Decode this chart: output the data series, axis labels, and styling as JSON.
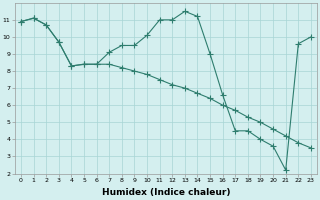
{
  "line1_x": [
    0,
    1,
    2,
    3,
    4,
    5,
    6,
    7,
    8,
    9,
    10,
    11,
    12,
    13,
    14,
    15,
    16,
    17,
    18,
    19,
    20,
    21,
    22,
    23
  ],
  "line1_y": [
    10.9,
    11.1,
    10.7,
    9.7,
    8.3,
    8.4,
    8.4,
    9.1,
    9.5,
    9.5,
    10.1,
    11.0,
    11.0,
    11.5,
    11.2,
    9.0,
    6.6,
    4.5,
    4.5,
    4.0,
    3.6,
    2.2,
    9.6,
    10.0
  ],
  "line2_x": [
    0,
    1,
    2,
    3,
    4,
    5,
    6,
    7,
    8,
    9,
    10,
    11,
    12,
    13,
    14,
    15,
    16,
    17,
    18,
    19,
    20,
    21,
    22,
    23
  ],
  "line2_y": [
    10.9,
    11.1,
    10.7,
    9.7,
    8.3,
    8.4,
    8.4,
    8.4,
    8.2,
    8.0,
    7.8,
    7.5,
    7.2,
    7.0,
    6.7,
    6.4,
    6.0,
    5.7,
    5.3,
    5.0,
    4.6,
    4.2,
    3.8,
    3.5
  ],
  "line_color": "#2e7d6e",
  "bg_color": "#d4efef",
  "grid_color": "#a8d5d5",
  "xlabel": "Humidex (Indice chaleur)",
  "ylim": [
    2,
    12
  ],
  "xlim": [
    -0.5,
    23.5
  ],
  "yticks": [
    2,
    3,
    4,
    5,
    6,
    7,
    8,
    9,
    10,
    11
  ],
  "xticks": [
    0,
    1,
    2,
    3,
    4,
    5,
    6,
    7,
    8,
    9,
    10,
    11,
    12,
    13,
    14,
    15,
    16,
    17,
    18,
    19,
    20,
    21,
    22,
    23
  ],
  "marker": "+",
  "markersize": 4,
  "linewidth": 0.8,
  "tick_fontsize": 4.5,
  "xlabel_fontsize": 6.5,
  "xlabel_fontweight": "bold"
}
